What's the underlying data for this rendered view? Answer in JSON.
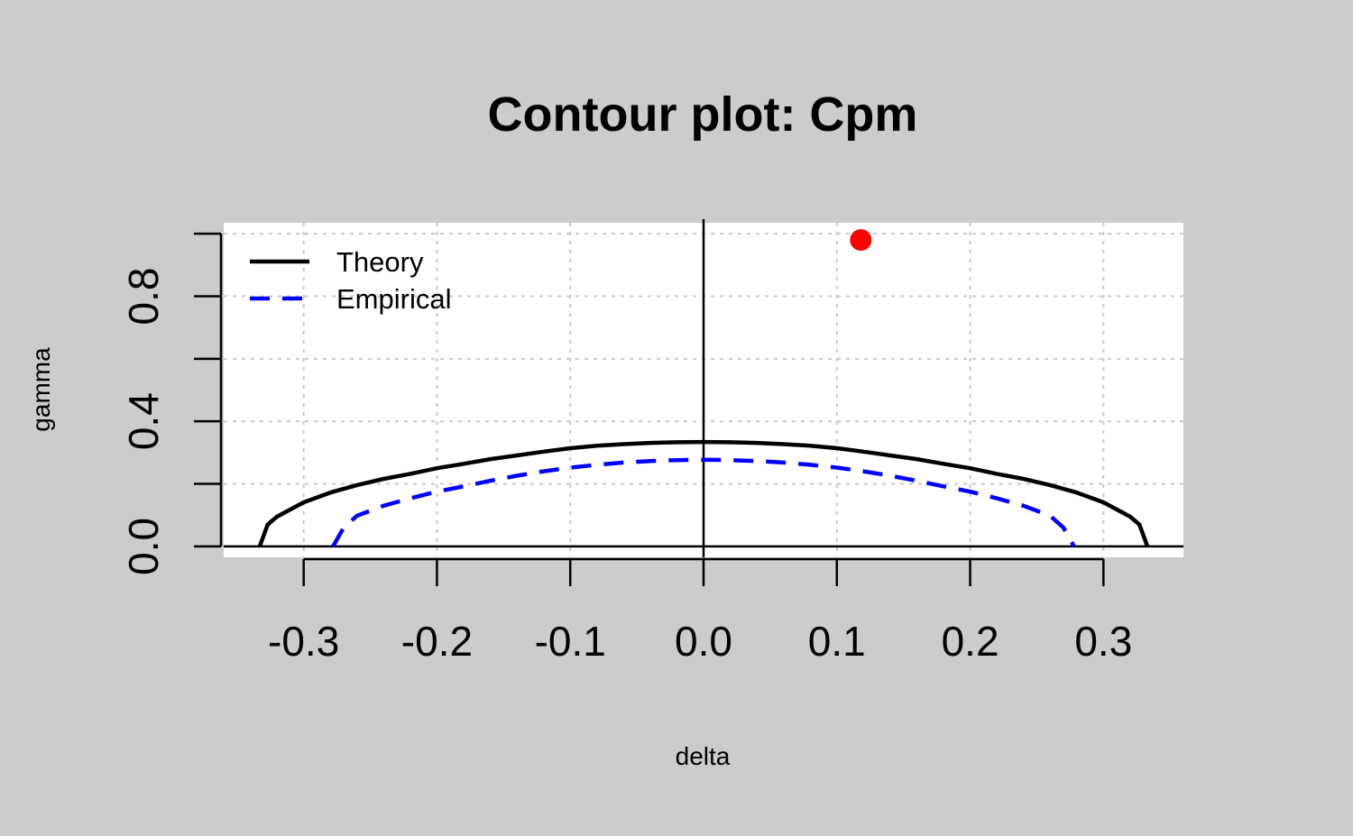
{
  "chart_data": {
    "type": "line",
    "title": "Contour plot: Cpm",
    "xlabel": "delta",
    "ylabel": "gamma",
    "xlim": [
      -0.36,
      0.36
    ],
    "ylim": [
      -0.035,
      1.035
    ],
    "x_ticks": [
      -0.3,
      -0.2,
      -0.1,
      0.0,
      0.1,
      0.2,
      0.3
    ],
    "x_tick_labels": [
      "-0.3",
      "-0.2",
      "-0.1",
      "0.0",
      "0.1",
      "0.2",
      "0.3"
    ],
    "y_ticks": [
      0.0,
      0.2,
      0.4,
      0.6,
      0.8,
      1.0
    ],
    "y_tick_labels": [
      "0.0",
      "0.4",
      "0.8"
    ],
    "y_tick_labels_at": [
      0.0,
      0.4,
      0.8
    ],
    "grid": true,
    "legend_position": "top-left",
    "series": [
      {
        "name": "Theory",
        "color": "#000000",
        "dash": "solid",
        "points": [
          [
            -0.333,
            0.0
          ],
          [
            -0.327,
            0.07
          ],
          [
            -0.32,
            0.095
          ],
          [
            -0.3,
            0.141
          ],
          [
            -0.28,
            0.172
          ],
          [
            -0.26,
            0.196
          ],
          [
            -0.24,
            0.216
          ],
          [
            -0.22,
            0.232
          ],
          [
            -0.2,
            0.25
          ],
          [
            -0.18,
            0.264
          ],
          [
            -0.16,
            0.279
          ],
          [
            -0.14,
            0.291
          ],
          [
            -0.12,
            0.303
          ],
          [
            -0.1,
            0.314
          ],
          [
            -0.08,
            0.322
          ],
          [
            -0.06,
            0.327
          ],
          [
            -0.04,
            0.331
          ],
          [
            -0.02,
            0.333
          ],
          [
            0.0,
            0.334
          ],
          [
            0.02,
            0.333
          ],
          [
            0.04,
            0.331
          ],
          [
            0.06,
            0.327
          ],
          [
            0.08,
            0.322
          ],
          [
            0.1,
            0.314
          ],
          [
            0.12,
            0.303
          ],
          [
            0.14,
            0.291
          ],
          [
            0.16,
            0.279
          ],
          [
            0.18,
            0.264
          ],
          [
            0.2,
            0.25
          ],
          [
            0.22,
            0.232
          ],
          [
            0.24,
            0.216
          ],
          [
            0.26,
            0.196
          ],
          [
            0.28,
            0.172
          ],
          [
            0.3,
            0.141
          ],
          [
            0.32,
            0.095
          ],
          [
            0.327,
            0.07
          ],
          [
            0.333,
            0.0
          ]
        ]
      },
      {
        "name": "Empirical",
        "color": "#0000ff",
        "dash": "dashed",
        "points": [
          [
            -0.278,
            0.0
          ],
          [
            -0.27,
            0.06
          ],
          [
            -0.26,
            0.098
          ],
          [
            -0.24,
            0.13
          ],
          [
            -0.22,
            0.154
          ],
          [
            -0.2,
            0.175
          ],
          [
            -0.18,
            0.192
          ],
          [
            -0.16,
            0.21
          ],
          [
            -0.14,
            0.226
          ],
          [
            -0.12,
            0.24
          ],
          [
            -0.1,
            0.252
          ],
          [
            -0.08,
            0.261
          ],
          [
            -0.06,
            0.268
          ],
          [
            -0.04,
            0.273
          ],
          [
            -0.02,
            0.276
          ],
          [
            0.0,
            0.277
          ],
          [
            0.02,
            0.276
          ],
          [
            0.04,
            0.273
          ],
          [
            0.06,
            0.268
          ],
          [
            0.08,
            0.261
          ],
          [
            0.1,
            0.252
          ],
          [
            0.12,
            0.24
          ],
          [
            0.14,
            0.226
          ],
          [
            0.16,
            0.21
          ],
          [
            0.18,
            0.192
          ],
          [
            0.2,
            0.175
          ],
          [
            0.22,
            0.154
          ],
          [
            0.24,
            0.13
          ],
          [
            0.26,
            0.098
          ],
          [
            0.27,
            0.06
          ],
          [
            0.278,
            0.0
          ]
        ]
      }
    ],
    "point": {
      "x": 0.118,
      "y": 0.98,
      "color": "#ff0000"
    },
    "reference_lines": {
      "vertical_x": 0.0,
      "horizontal_y": 0.0
    }
  }
}
